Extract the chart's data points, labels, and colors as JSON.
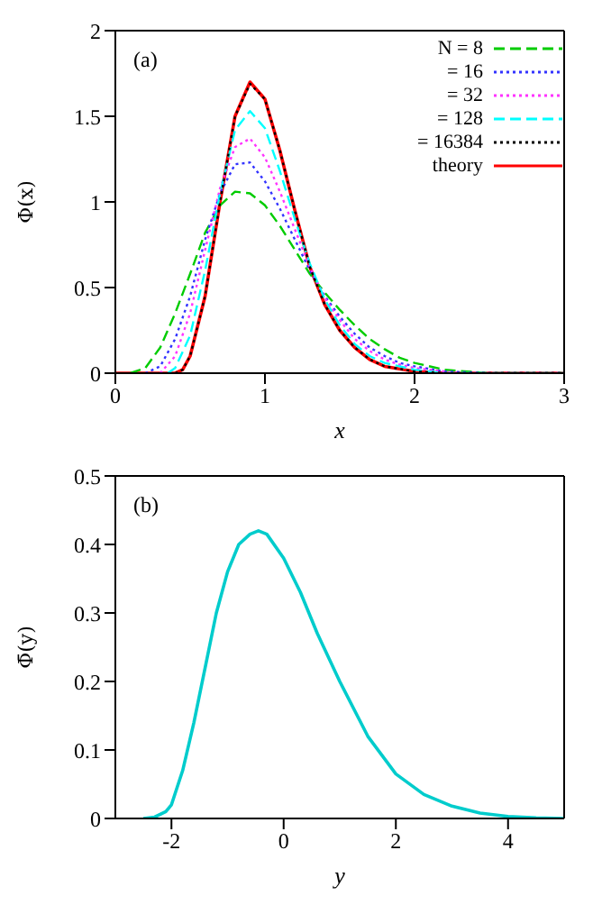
{
  "chart_data": [
    {
      "type": "line",
      "xlabel": "x",
      "ylabel": "Φ(x)",
      "annotations": [
        "(a)"
      ],
      "xlim": [
        0,
        3
      ],
      "xticks": [
        0,
        1,
        2,
        3
      ],
      "ylim": [
        0,
        2
      ],
      "yticks": [
        0,
        0.5,
        1,
        1.5,
        2
      ],
      "legend": "top right",
      "marker": "none",
      "series": [
        {
          "name": "N = 8",
          "color": "#00cc00",
          "line_style": "dashed",
          "x": [
            0.1,
            0.2,
            0.3,
            0.4,
            0.5,
            0.6,
            0.7,
            0.8,
            0.9,
            1.0,
            1.1,
            1.2,
            1.3,
            1.4,
            1.5,
            1.6,
            1.7,
            1.8,
            1.9,
            2.0,
            2.2,
            2.5,
            3
          ],
          "values": [
            0,
            0.03,
            0.15,
            0.35,
            0.58,
            0.82,
            0.98,
            1.06,
            1.05,
            0.98,
            0.86,
            0.72,
            0.58,
            0.47,
            0.37,
            0.28,
            0.2,
            0.14,
            0.09,
            0.06,
            0.02,
            0,
            0
          ]
        },
        {
          "name": "= 16",
          "color": "#3333ff",
          "line_style": "dotted",
          "x": [
            0.2,
            0.3,
            0.4,
            0.5,
            0.6,
            0.7,
            0.8,
            0.9,
            1.0,
            1.1,
            1.2,
            1.3,
            1.4,
            1.5,
            1.6,
            1.7,
            1.8,
            1.9,
            2.0,
            2.2,
            2.5,
            3
          ],
          "values": [
            0,
            0.04,
            0.2,
            0.45,
            0.78,
            1.05,
            1.22,
            1.23,
            1.12,
            0.96,
            0.78,
            0.6,
            0.45,
            0.33,
            0.23,
            0.15,
            0.1,
            0.06,
            0.04,
            0.01,
            0,
            0
          ]
        },
        {
          "name": "= 32",
          "color": "#ff33ff",
          "line_style": "dotted",
          "x": [
            0.3,
            0.4,
            0.5,
            0.6,
            0.7,
            0.8,
            0.9,
            1.0,
            1.1,
            1.2,
            1.3,
            1.4,
            1.5,
            1.6,
            1.7,
            1.8,
            1.9,
            2.0,
            2.3,
            3
          ],
          "values": [
            0,
            0.1,
            0.35,
            0.72,
            1.08,
            1.32,
            1.37,
            1.26,
            1.06,
            0.84,
            0.62,
            0.44,
            0.31,
            0.2,
            0.13,
            0.08,
            0.05,
            0.03,
            0,
            0
          ]
        },
        {
          "name": "= 128",
          "color": "#00ffff",
          "line_style": "dashed",
          "x": [
            0.35,
            0.4,
            0.5,
            0.6,
            0.7,
            0.8,
            0.9,
            1.0,
            1.1,
            1.2,
            1.3,
            1.4,
            1.5,
            1.6,
            1.7,
            1.8,
            2.0,
            2.2,
            3
          ],
          "values": [
            0,
            0.03,
            0.22,
            0.6,
            1.05,
            1.42,
            1.53,
            1.43,
            1.18,
            0.9,
            0.64,
            0.43,
            0.28,
            0.17,
            0.1,
            0.06,
            0.02,
            0,
            0
          ]
        },
        {
          "name": "= 16384",
          "color": "#000000",
          "line_style": "dotted",
          "x": [
            0.4,
            0.45,
            0.5,
            0.6,
            0.7,
            0.8,
            0.9,
            1.0,
            1.1,
            1.2,
            1.3,
            1.4,
            1.5,
            1.6,
            1.7,
            1.8,
            2.0,
            2.2,
            3
          ],
          "values": [
            0,
            0.02,
            0.1,
            0.45,
            1.0,
            1.5,
            1.69,
            1.6,
            1.3,
            0.95,
            0.62,
            0.4,
            0.25,
            0.15,
            0.08,
            0.04,
            0.01,
            0,
            0
          ]
        },
        {
          "name": "theory",
          "color": "#ff0000",
          "line_style": "solid",
          "x": [
            0,
            0.4,
            0.45,
            0.5,
            0.6,
            0.7,
            0.8,
            0.9,
            1.0,
            1.1,
            1.2,
            1.3,
            1.4,
            1.5,
            1.6,
            1.7,
            1.8,
            2.0,
            2.2,
            3
          ],
          "values": [
            0,
            0,
            0.02,
            0.1,
            0.45,
            1.0,
            1.5,
            1.7,
            1.6,
            1.3,
            0.95,
            0.62,
            0.4,
            0.25,
            0.15,
            0.08,
            0.04,
            0.01,
            0,
            0
          ]
        }
      ]
    },
    {
      "type": "line",
      "xlabel": "y",
      "ylabel": "Φ̄(y)",
      "annotations": [
        "(b)"
      ],
      "xlim": [
        -3,
        5
      ],
      "xticks": [
        -2,
        0,
        2,
        4
      ],
      "ylim": [
        0,
        0.5
      ],
      "yticks": [
        0,
        0.1,
        0.2,
        0.3,
        0.4,
        0.5
      ],
      "marker": "none",
      "series": [
        {
          "color": "#00cccc",
          "line_style": "solid",
          "x": [
            -2.5,
            -2.3,
            -2.1,
            -2.0,
            -1.8,
            -1.6,
            -1.4,
            -1.2,
            -1.0,
            -0.8,
            -0.6,
            -0.45,
            -0.3,
            0,
            0.3,
            0.6,
            1.0,
            1.5,
            2.0,
            2.5,
            3.0,
            3.5,
            4.0,
            4.5,
            5.0
          ],
          "values": [
            0,
            0.002,
            0.01,
            0.02,
            0.07,
            0.14,
            0.22,
            0.3,
            0.36,
            0.4,
            0.415,
            0.42,
            0.415,
            0.38,
            0.33,
            0.27,
            0.2,
            0.12,
            0.065,
            0.035,
            0.018,
            0.008,
            0.003,
            0.001,
            0
          ]
        }
      ]
    }
  ]
}
